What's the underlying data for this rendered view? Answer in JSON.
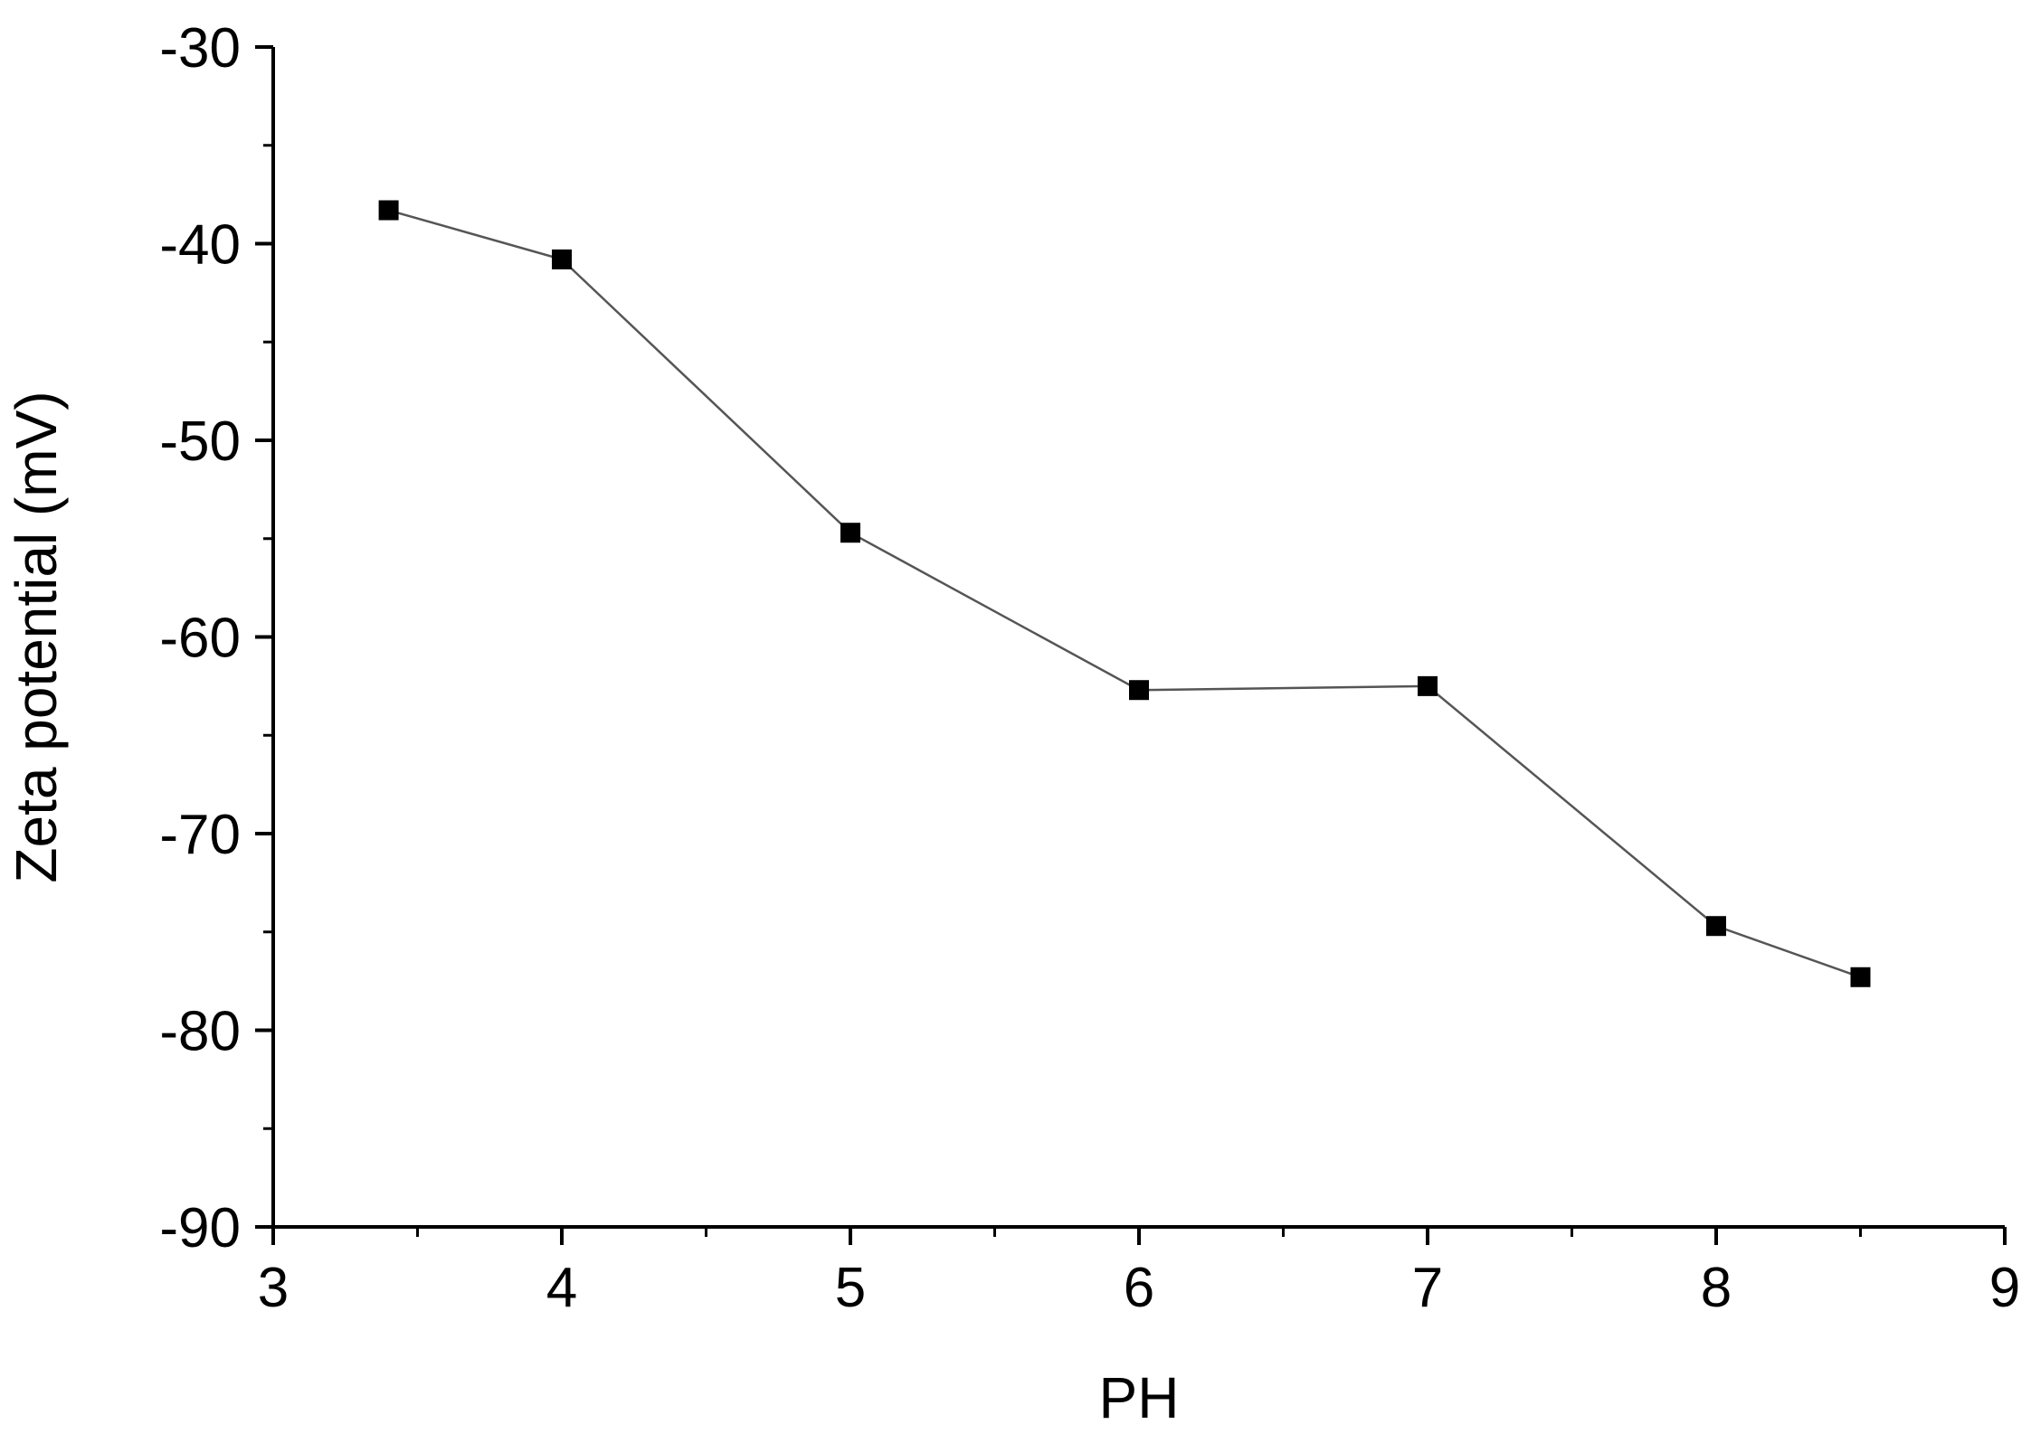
{
  "chart_data": {
    "type": "line",
    "title": "",
    "xlabel": "PH",
    "ylabel": "Zeta potential (mV)",
    "xlim": [
      3,
      9
    ],
    "ylim": [
      -90,
      -30
    ],
    "x_ticks": [
      3,
      4,
      5,
      6,
      7,
      8,
      9
    ],
    "x_minor_ticks": [
      3.5,
      4.5,
      5.5,
      6.5,
      7.5,
      8.5
    ],
    "y_ticks": [
      -90,
      -80,
      -70,
      -60,
      -50,
      -40,
      -30
    ],
    "y_minor_ticks": [
      -85,
      -75,
      -65,
      -55,
      -45,
      -35
    ],
    "grid": false,
    "legend": "none",
    "marker": "square",
    "colors": {
      "marker": "#000000",
      "line": "#555555",
      "axis": "#000000"
    },
    "series": [
      {
        "x": [
          3.4,
          4,
          5,
          6,
          7,
          8,
          8.5
        ],
        "y": [
          -38.3,
          -40.8,
          -54.7,
          -62.7,
          -62.5,
          -74.7,
          -77.3
        ]
      }
    ]
  }
}
